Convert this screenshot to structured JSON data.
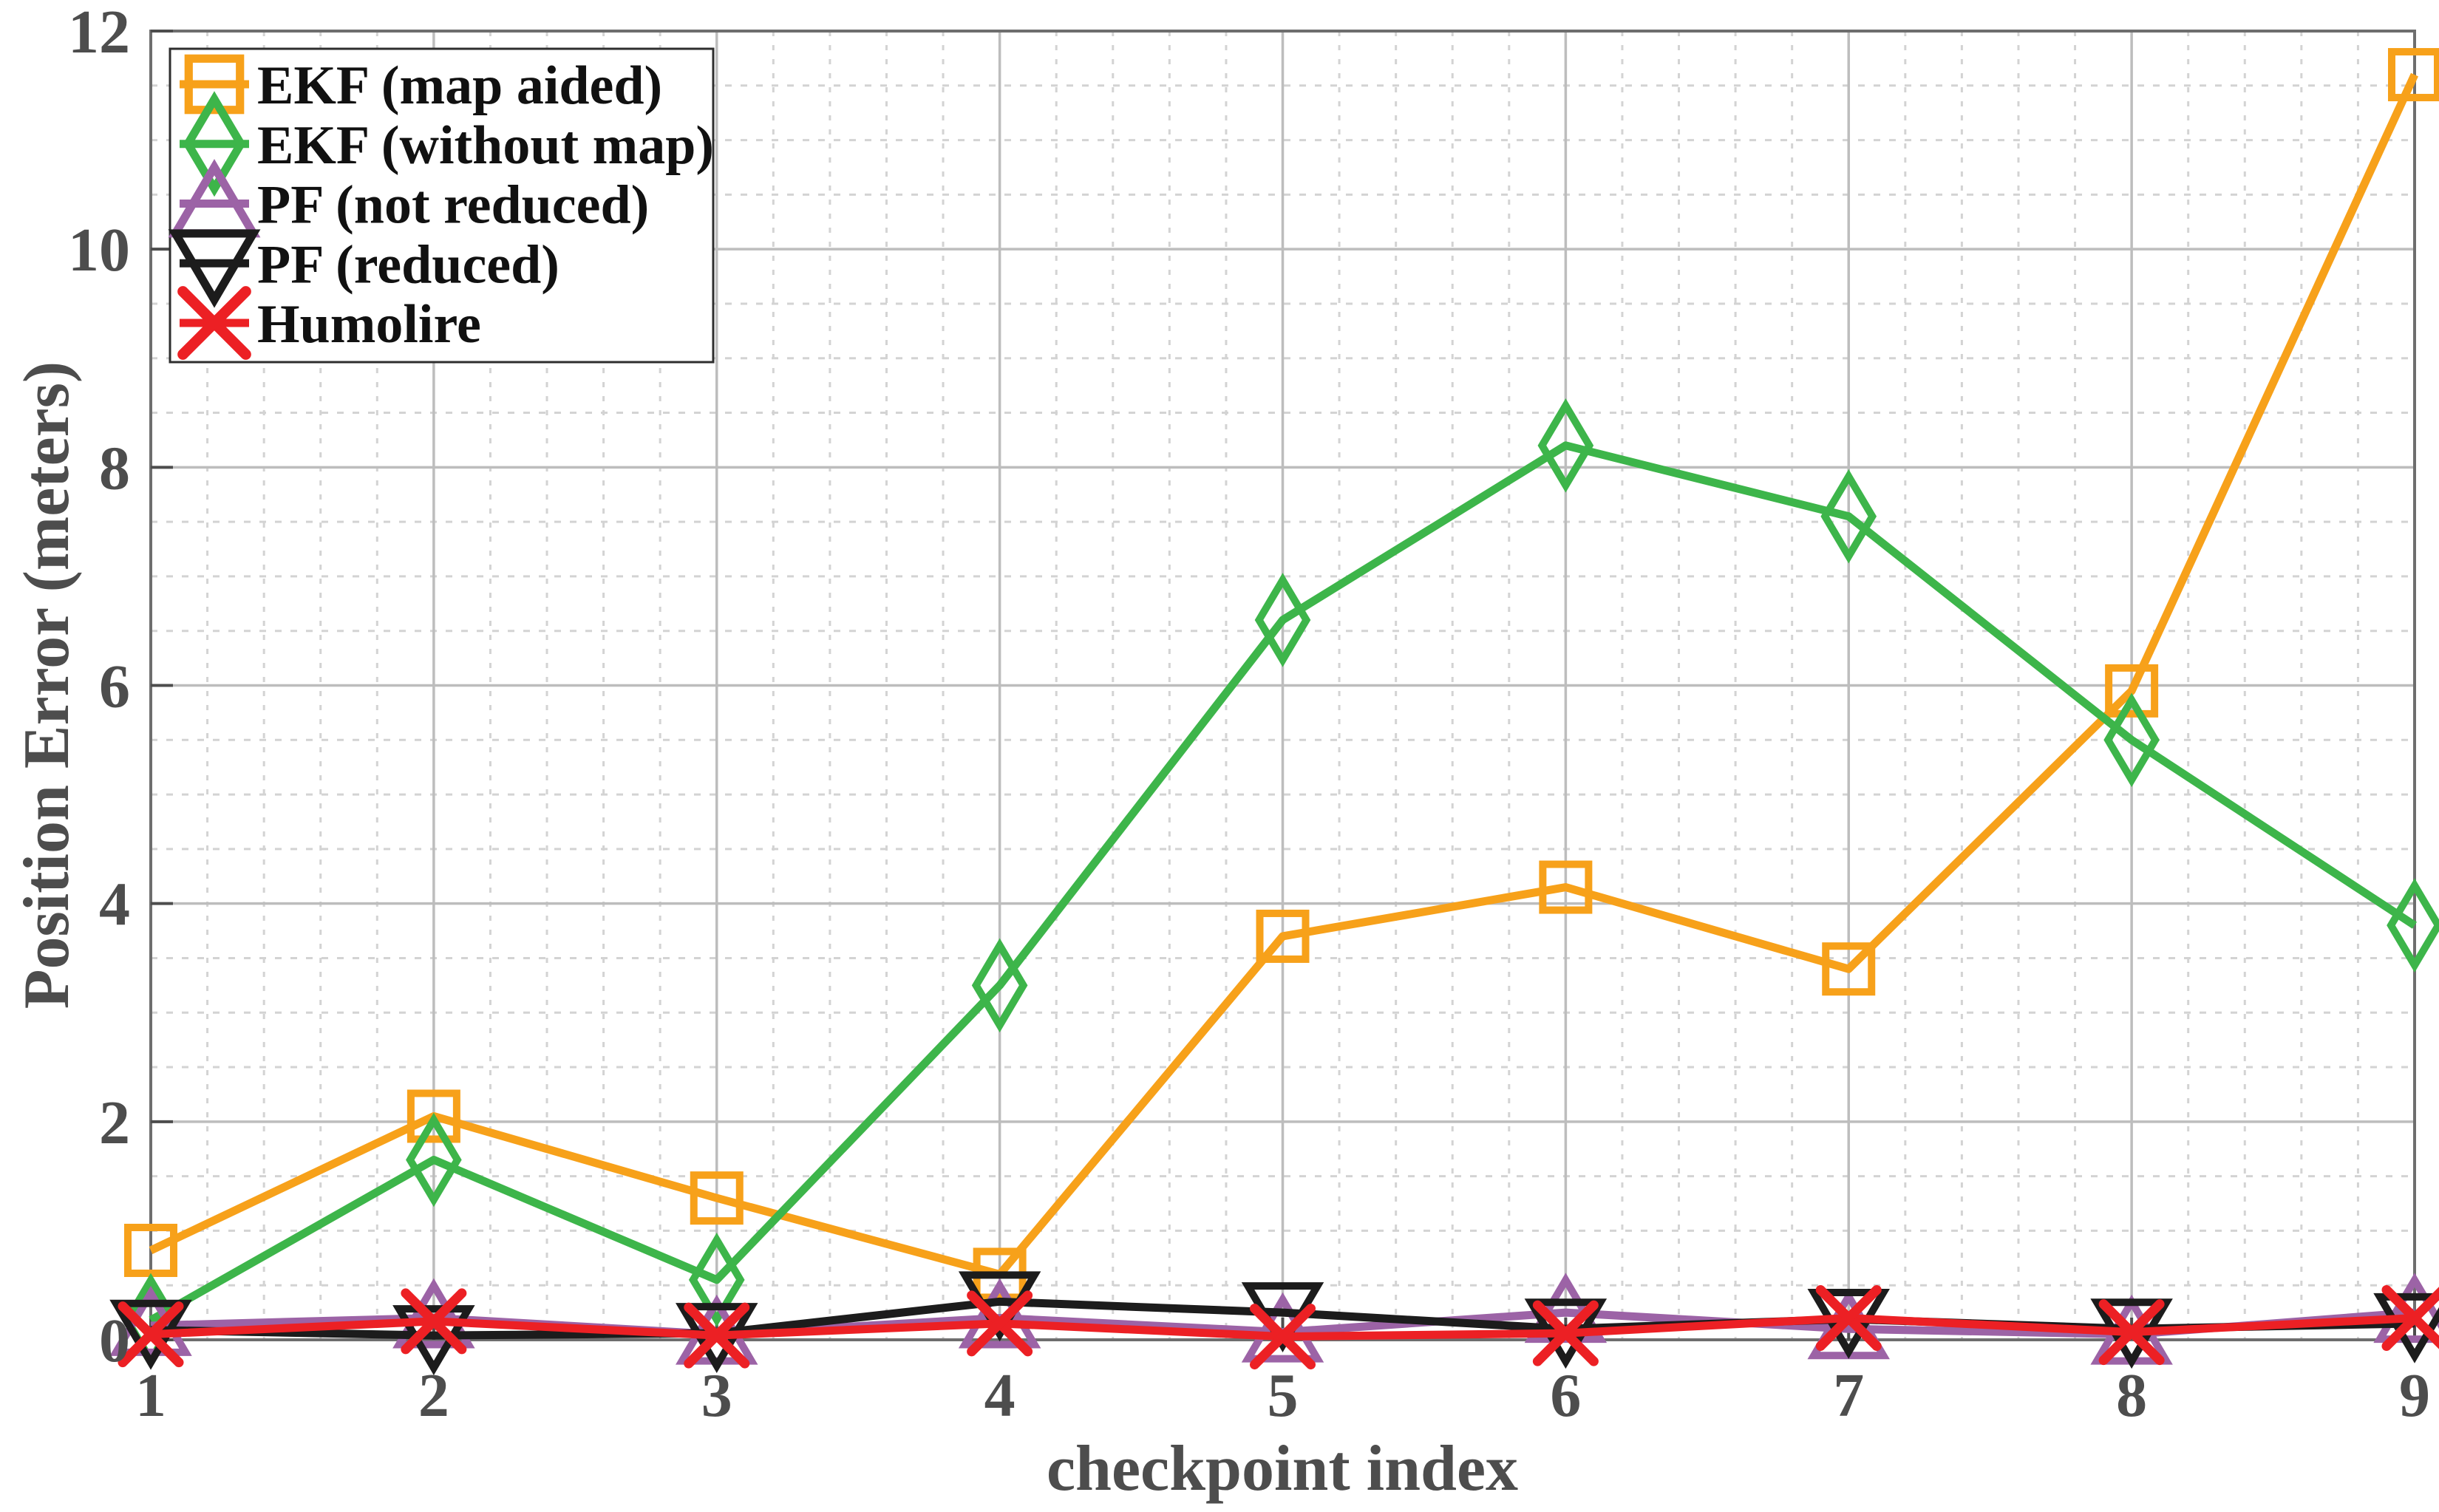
{
  "chart_data": {
    "type": "line",
    "title": "",
    "xlabel": "checkpoint index",
    "ylabel": "Position Error (meters)",
    "x": [
      1,
      2,
      3,
      4,
      5,
      6,
      7,
      8,
      9
    ],
    "xlim": [
      1,
      9
    ],
    "ylim": [
      0,
      12
    ],
    "xticks": [
      1,
      2,
      3,
      4,
      5,
      6,
      7,
      8,
      9
    ],
    "yticks": [
      0,
      2,
      4,
      6,
      8,
      10,
      12
    ],
    "minor_x_step": 0.2,
    "minor_y_step": 0.5,
    "grid": "major-solid + minor-dotted",
    "legend_position": "top-left",
    "series": [
      {
        "name": "EKF (map aided)",
        "color": "#F7A11A",
        "marker": "square",
        "values": [
          0.82,
          2.05,
          1.3,
          0.6,
          3.7,
          4.15,
          3.4,
          5.95,
          11.6
        ]
      },
      {
        "name": "EKF (without map)",
        "color": "#3DB54A",
        "marker": "diamond",
        "values": [
          0.18,
          1.65,
          0.55,
          3.25,
          6.6,
          8.2,
          7.55,
          5.5,
          3.8
        ]
      },
      {
        "name": "PF (not reduced)",
        "color": "#9C63A6",
        "marker": "triangle-up",
        "values": [
          0.13,
          0.2,
          0.05,
          0.2,
          0.07,
          0.25,
          0.1,
          0.05,
          0.25
        ]
      },
      {
        "name": "PF (reduced)",
        "color": "#1C1C1C",
        "marker": "triangle-down",
        "values": [
          0.09,
          0.04,
          0.06,
          0.35,
          0.25,
          0.1,
          0.19,
          0.1,
          0.15
        ]
      },
      {
        "name": "Humolire",
        "color": "#EC2024",
        "marker": "x",
        "values": [
          0.05,
          0.17,
          0.04,
          0.15,
          0.03,
          0.06,
          0.2,
          0.07,
          0.2
        ]
      }
    ],
    "colors": {
      "axis_text": "#4D4D4D",
      "axis_box": "#6E6E6E",
      "major_grid": "#BDBDBD",
      "minor_grid": "#D3D3D3",
      "legend_border": "#2E2E2E",
      "legend_background": "#FFFFFF",
      "legend_text": "#111111",
      "background": "#FFFFFF"
    }
  }
}
